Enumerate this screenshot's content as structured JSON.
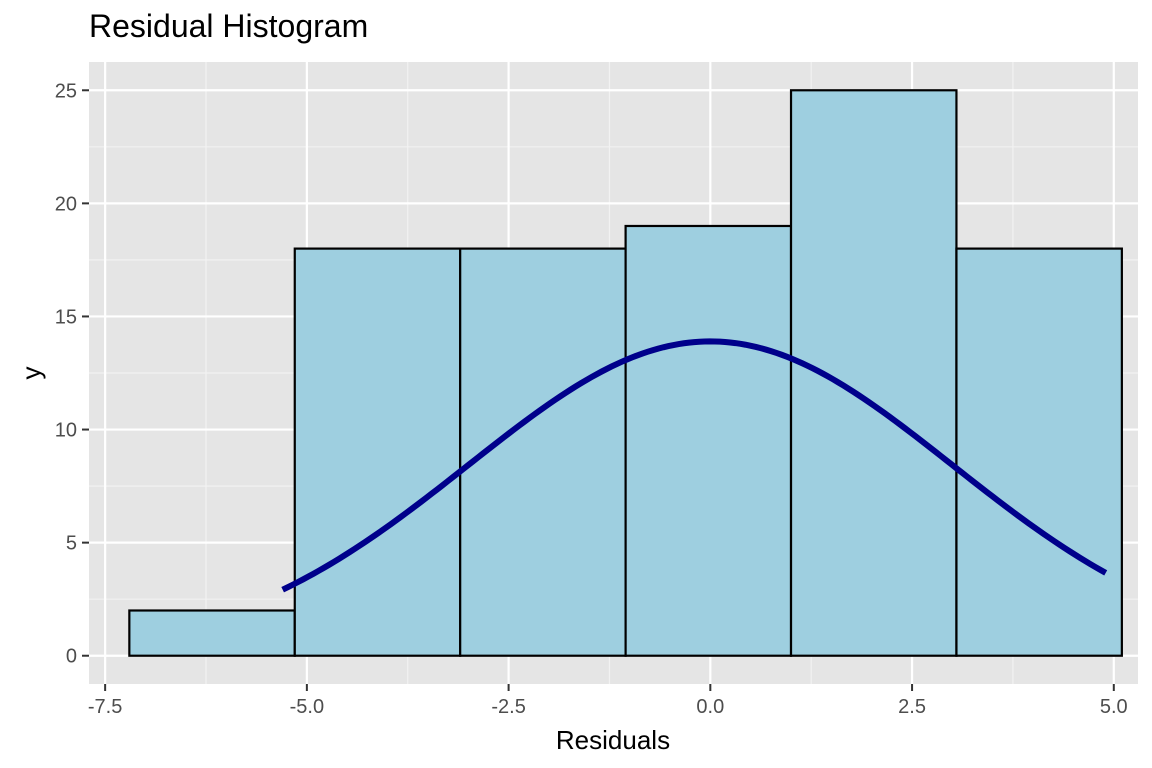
{
  "chart_data": {
    "type": "bar",
    "title": "Residual Histogram",
    "xlabel": "Residuals",
    "ylabel": "y",
    "xlim": [
      -7.7,
      5.3
    ],
    "ylim": [
      -1.25,
      26.25
    ],
    "bin_width": 2.05,
    "bins": [
      {
        "xmin": -7.2,
        "xmax": -5.15,
        "count": 2
      },
      {
        "xmin": -5.15,
        "xmax": -3.1,
        "count": 18
      },
      {
        "xmin": -3.1,
        "xmax": -1.05,
        "count": 18
      },
      {
        "xmin": -1.05,
        "xmax": 1.0,
        "count": 19
      },
      {
        "xmin": 1.0,
        "xmax": 3.05,
        "count": 25
      },
      {
        "xmin": 3.05,
        "xmax": 5.1,
        "count": 18
      }
    ],
    "x_ticks": [
      -7.5,
      -5.0,
      -2.5,
      0.0,
      2.5,
      5.0
    ],
    "x_tick_labels": [
      "-7.5",
      "-5.0",
      "-2.5",
      "0.0",
      "2.5",
      "5.0"
    ],
    "y_ticks": [
      0,
      5,
      10,
      15,
      20,
      25
    ],
    "y_tick_labels": [
      "0",
      "5",
      "10",
      "15",
      "20",
      "25"
    ],
    "density_curve": {
      "type": "line",
      "mean": 0,
      "sd": 3.0,
      "scale": 104.5,
      "x_range": [
        -5.3,
        4.9
      ]
    },
    "grid": true,
    "colors": {
      "panel_background": "#e5e5e5",
      "grid_major": "#ffffff",
      "grid_minor": "#f2f2f2",
      "bar_fill": "#9ecfe0",
      "bar_stroke": "#000000",
      "curve": "#00008b",
      "tick_label": "#4d4d4d"
    }
  }
}
